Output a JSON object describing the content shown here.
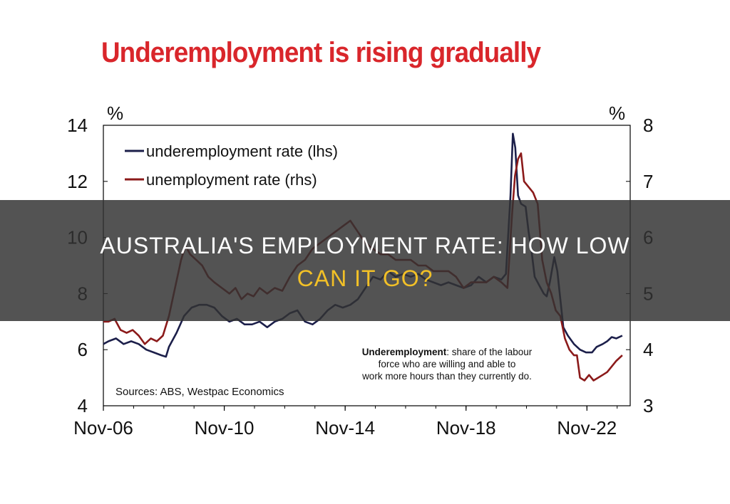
{
  "chart_data": {
    "type": "line",
    "title": "Underemployment is rising gradually",
    "y_left_unit": "%",
    "y_right_unit": "%",
    "y_left_range": [
      4,
      14
    ],
    "y_right_range": [
      3,
      8
    ],
    "y_left_ticks": [
      "4",
      "6",
      "8",
      "10",
      "12",
      "14"
    ],
    "y_right_ticks": [
      "3",
      "4",
      "5",
      "6",
      "7",
      "8"
    ],
    "x_range": [
      2006.83,
      2024.0
    ],
    "x_ticks": [
      {
        "label": "Nov-06",
        "year": 2006.83
      },
      {
        "label": "Nov-10",
        "year": 2010.83
      },
      {
        "label": "Nov-14",
        "year": 2014.83
      },
      {
        "label": "Nov-18",
        "year": 2018.83
      },
      {
        "label": "Nov-22",
        "year": 2022.83
      }
    ],
    "legend": [
      "underemployment rate (lhs)",
      "unemployment rate (rhs)"
    ],
    "legend_position": "top-left",
    "source": "Sources: ABS, Westpac Economics",
    "annotation": {
      "bold": "Underemployment",
      "rest": ": share of the labour force who are willing and able to work more hours than they currently do."
    },
    "grid": false,
    "series": [
      {
        "name": "underemployment rate (lhs)",
        "axis": "left",
        "color": "#1c1f4a",
        "points": [
          [
            2006.83,
            6.2
          ],
          [
            2007.0,
            6.3
          ],
          [
            2007.25,
            6.4
          ],
          [
            2007.5,
            6.2
          ],
          [
            2007.75,
            6.3
          ],
          [
            2008.0,
            6.2
          ],
          [
            2008.25,
            6.0
          ],
          [
            2008.5,
            5.9
          ],
          [
            2008.75,
            5.8
          ],
          [
            2008.9,
            5.75
          ],
          [
            2009.0,
            6.1
          ],
          [
            2009.25,
            6.6
          ],
          [
            2009.5,
            7.2
          ],
          [
            2009.75,
            7.5
          ],
          [
            2010.0,
            7.6
          ],
          [
            2010.25,
            7.6
          ],
          [
            2010.5,
            7.5
          ],
          [
            2010.75,
            7.2
          ],
          [
            2011.0,
            7.0
          ],
          [
            2011.25,
            7.1
          ],
          [
            2011.5,
            6.9
          ],
          [
            2011.75,
            6.9
          ],
          [
            2012.0,
            7.0
          ],
          [
            2012.25,
            6.8
          ],
          [
            2012.5,
            7.0
          ],
          [
            2012.75,
            7.1
          ],
          [
            2013.0,
            7.3
          ],
          [
            2013.25,
            7.4
          ],
          [
            2013.5,
            7.0
          ],
          [
            2013.75,
            6.9
          ],
          [
            2014.0,
            7.1
          ],
          [
            2014.25,
            7.4
          ],
          [
            2014.5,
            7.6
          ],
          [
            2014.75,
            7.5
          ],
          [
            2015.0,
            7.6
          ],
          [
            2015.25,
            7.8
          ],
          [
            2015.5,
            8.2
          ],
          [
            2015.75,
            8.6
          ],
          [
            2016.0,
            8.5
          ],
          [
            2016.25,
            8.8
          ],
          [
            2016.5,
            8.6
          ],
          [
            2016.75,
            8.7
          ],
          [
            2017.0,
            8.6
          ],
          [
            2017.25,
            8.7
          ],
          [
            2017.5,
            8.5
          ],
          [
            2017.75,
            8.4
          ],
          [
            2018.0,
            8.3
          ],
          [
            2018.25,
            8.4
          ],
          [
            2018.5,
            8.3
          ],
          [
            2018.75,
            8.2
          ],
          [
            2019.0,
            8.3
          ],
          [
            2019.25,
            8.6
          ],
          [
            2019.5,
            8.4
          ],
          [
            2019.75,
            8.6
          ],
          [
            2020.0,
            8.5
          ],
          [
            2020.15,
            8.7
          ],
          [
            2020.3,
            11.5
          ],
          [
            2020.38,
            13.7
          ],
          [
            2020.46,
            13.2
          ],
          [
            2020.55,
            11.5
          ],
          [
            2020.65,
            11.2
          ],
          [
            2020.8,
            11.1
          ],
          [
            2020.9,
            10.2
          ],
          [
            2021.0,
            9.5
          ],
          [
            2021.1,
            8.6
          ],
          [
            2021.25,
            8.3
          ],
          [
            2021.4,
            8.0
          ],
          [
            2021.5,
            7.9
          ],
          [
            2021.6,
            8.4
          ],
          [
            2021.75,
            9.3
          ],
          [
            2021.85,
            8.8
          ],
          [
            2021.95,
            7.8
          ],
          [
            2022.05,
            6.8
          ],
          [
            2022.2,
            6.5
          ],
          [
            2022.4,
            6.2
          ],
          [
            2022.6,
            6.0
          ],
          [
            2022.8,
            5.9
          ],
          [
            2023.0,
            5.9
          ],
          [
            2023.15,
            6.1
          ],
          [
            2023.35,
            6.2
          ],
          [
            2023.5,
            6.3
          ],
          [
            2023.65,
            6.45
          ],
          [
            2023.8,
            6.4
          ],
          [
            2024.0,
            6.5
          ]
        ]
      },
      {
        "name": "unemployment rate (rhs)",
        "axis": "right",
        "color": "#8b1a1a",
        "points": [
          [
            2006.83,
            4.5
          ],
          [
            2007.0,
            4.5
          ],
          [
            2007.2,
            4.55
          ],
          [
            2007.4,
            4.35
          ],
          [
            2007.6,
            4.3
          ],
          [
            2007.8,
            4.35
          ],
          [
            2008.0,
            4.25
          ],
          [
            2008.2,
            4.1
          ],
          [
            2008.4,
            4.2
          ],
          [
            2008.6,
            4.15
          ],
          [
            2008.8,
            4.25
          ],
          [
            2009.0,
            4.6
          ],
          [
            2009.2,
            5.1
          ],
          [
            2009.4,
            5.6
          ],
          [
            2009.55,
            5.85
          ],
          [
            2009.7,
            5.7
          ],
          [
            2009.9,
            5.6
          ],
          [
            2010.1,
            5.5
          ],
          [
            2010.3,
            5.3
          ],
          [
            2010.5,
            5.2
          ],
          [
            2010.75,
            5.1
          ],
          [
            2011.0,
            5.0
          ],
          [
            2011.2,
            5.1
          ],
          [
            2011.4,
            4.9
          ],
          [
            2011.6,
            5.0
          ],
          [
            2011.8,
            4.95
          ],
          [
            2012.0,
            5.1
          ],
          [
            2012.25,
            5.0
          ],
          [
            2012.5,
            5.1
          ],
          [
            2012.75,
            5.05
          ],
          [
            2013.0,
            5.3
          ],
          [
            2013.25,
            5.5
          ],
          [
            2013.5,
            5.6
          ],
          [
            2013.75,
            5.8
          ],
          [
            2014.0,
            5.9
          ],
          [
            2014.25,
            6.0
          ],
          [
            2014.5,
            6.1
          ],
          [
            2014.75,
            6.2
          ],
          [
            2015.0,
            6.3
          ],
          [
            2015.25,
            6.1
          ],
          [
            2015.5,
            5.9
          ],
          [
            2015.75,
            5.8
          ],
          [
            2016.0,
            5.7
          ],
          [
            2016.25,
            5.7
          ],
          [
            2016.5,
            5.6
          ],
          [
            2016.75,
            5.6
          ],
          [
            2017.0,
            5.6
          ],
          [
            2017.25,
            5.5
          ],
          [
            2017.5,
            5.5
          ],
          [
            2017.75,
            5.4
          ],
          [
            2018.0,
            5.4
          ],
          [
            2018.25,
            5.4
          ],
          [
            2018.5,
            5.3
          ],
          [
            2018.75,
            5.1
          ],
          [
            2019.0,
            5.2
          ],
          [
            2019.25,
            5.2
          ],
          [
            2019.5,
            5.2
          ],
          [
            2019.75,
            5.3
          ],
          [
            2020.0,
            5.2
          ],
          [
            2020.2,
            5.1
          ],
          [
            2020.35,
            6.4
          ],
          [
            2020.45,
            7.1
          ],
          [
            2020.55,
            7.4
          ],
          [
            2020.65,
            7.5
          ],
          [
            2020.75,
            7.0
          ],
          [
            2020.9,
            6.9
          ],
          [
            2021.05,
            6.8
          ],
          [
            2021.2,
            6.6
          ],
          [
            2021.35,
            5.6
          ],
          [
            2021.5,
            5.2
          ],
          [
            2021.65,
            5.0
          ],
          [
            2021.8,
            4.7
          ],
          [
            2021.95,
            4.6
          ],
          [
            2022.1,
            4.2
          ],
          [
            2022.25,
            4.0
          ],
          [
            2022.4,
            3.9
          ],
          [
            2022.5,
            3.9
          ],
          [
            2022.6,
            3.5
          ],
          [
            2022.75,
            3.45
          ],
          [
            2022.9,
            3.55
          ],
          [
            2023.05,
            3.45
          ],
          [
            2023.2,
            3.5
          ],
          [
            2023.35,
            3.55
          ],
          [
            2023.5,
            3.6
          ],
          [
            2023.65,
            3.7
          ],
          [
            2023.8,
            3.8
          ],
          [
            2024.0,
            3.9
          ]
        ]
      }
    ]
  },
  "overlay": {
    "line1": "AUSTRALIA'S EMPLOYMENT RATE: HOW LOW",
    "line2": "CAN IT GO?"
  }
}
